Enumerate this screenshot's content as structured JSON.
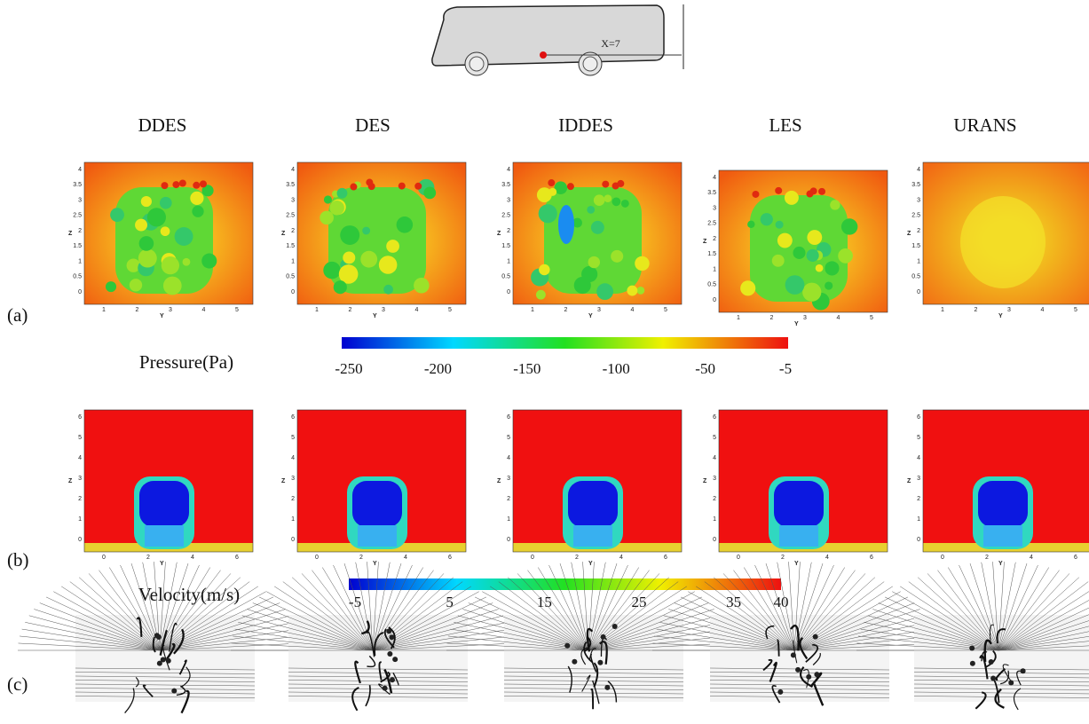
{
  "diagram": {
    "label": "X=7"
  },
  "columns": [
    "DDES",
    "DES",
    "IDDES",
    "LES",
    "URANS"
  ],
  "row_labels": [
    "(a)",
    "(b)",
    "(c)"
  ],
  "pressure": {
    "axis": {
      "x_label": "Y",
      "y_label": "Z",
      "x_ticks": [
        "1",
        "2",
        "3",
        "4",
        "5"
      ],
      "y_ticks": [
        "0",
        "0.5",
        "1",
        "1.5",
        "2",
        "2.5",
        "3",
        "3.5",
        "4"
      ]
    },
    "colorbar": {
      "title": "Pressure(Pa)",
      "ticks": [
        -250,
        -200,
        -150,
        -100,
        -50,
        -5
      ]
    }
  },
  "velocity": {
    "axis": {
      "x_label": "Y",
      "y_label": "Z",
      "x_ticks": [
        "0",
        "2",
        "4",
        "6"
      ],
      "y_ticks": [
        "0",
        "1",
        "2",
        "3",
        "4",
        "5",
        "6"
      ]
    },
    "colorbar": {
      "title": "Velocity(m/s)",
      "ticks": [
        -5,
        5,
        15,
        25,
        35,
        40
      ]
    }
  }
}
